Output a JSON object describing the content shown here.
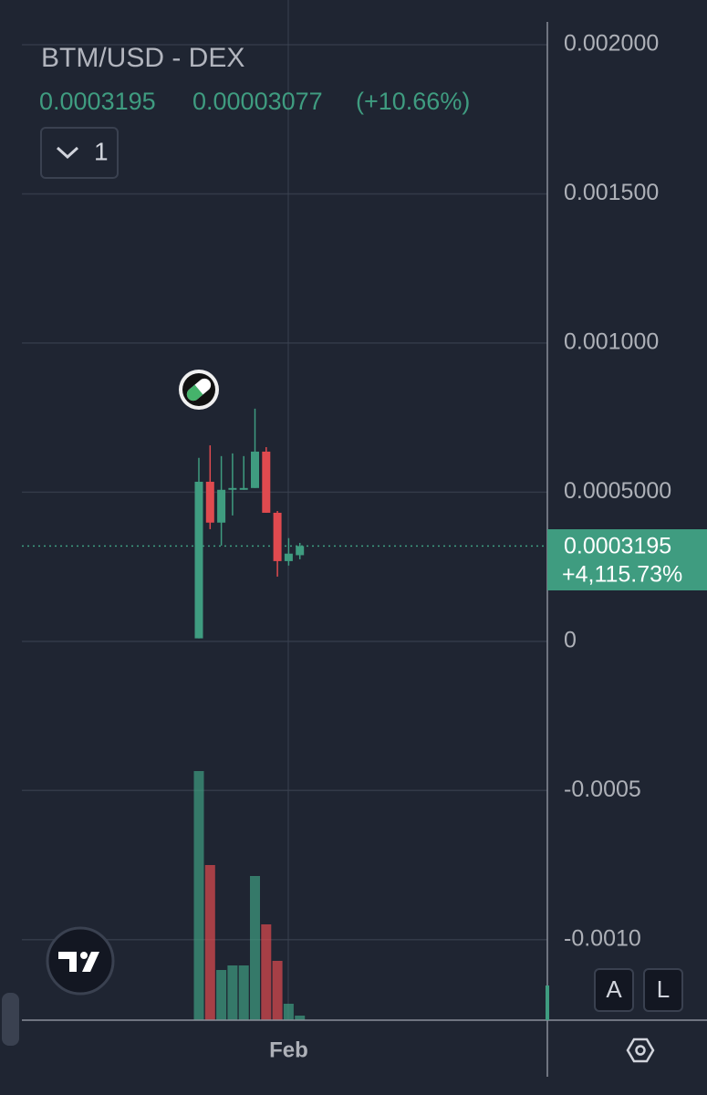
{
  "chart_data": {
    "type": "candlestick",
    "title": "BTM/USD - DEX",
    "change": 3.077e-05,
    "change_label": "(+10.66%)",
    "interval_button": "1",
    "total_change": "+4,115.73%",
    "categories": [
      null,
      null,
      null,
      null,
      null,
      null,
      null,
      null,
      null,
      null
    ],
    "xticks": [
      {
        "value": 8,
        "label": "Feb"
      }
    ],
    "open": [
      1e-05,
      0.000535,
      0.000398,
      0.000508,
      0.000508,
      0.000514,
      0.000636,
      0.000431,
      0.000269,
      0.0002888
    ],
    "high": [
      0.000615,
      0.000657,
      0.000621,
      0.00063,
      0.000621,
      0.00078,
      0.000651,
      0.000437,
      0.000346,
      0.00033
    ],
    "low": [
      1e-05,
      0.000376,
      0.000321,
      0.000422,
      0.000508,
      0.000514,
      0.000431,
      0.000217,
      0.000254,
      0.000275
    ],
    "close": [
      0.000535,
      0.000398,
      0.000508,
      0.000514,
      0.000514,
      0.000636,
      0.000431,
      0.000269,
      0.000294,
      0.0003195
    ],
    "volume": [
      273,
      170,
      55,
      60,
      60,
      158,
      105,
      65,
      18,
      5
    ],
    "volume_lim": [
      0,
      1118
    ],
    "up_color": "#3f9c80",
    "down_color": "#e04a4f",
    "ylim": [
      -0.00127,
      0.00215
    ],
    "yticks": [
      {
        "value": -0.001,
        "label": "-0.0010"
      },
      -0.0005,
      0,
      {
        "value": 0.0005,
        "label": "0.0005000"
      },
      {
        "value": 0.001,
        "label": "0.001000"
      },
      {
        "value": 0.0015,
        "label": "0.001500"
      },
      {
        "value": 0.002,
        "label": "0.002000"
      }
    ],
    "grid": true,
    "buttons": [
      "A",
      "L"
    ]
  }
}
